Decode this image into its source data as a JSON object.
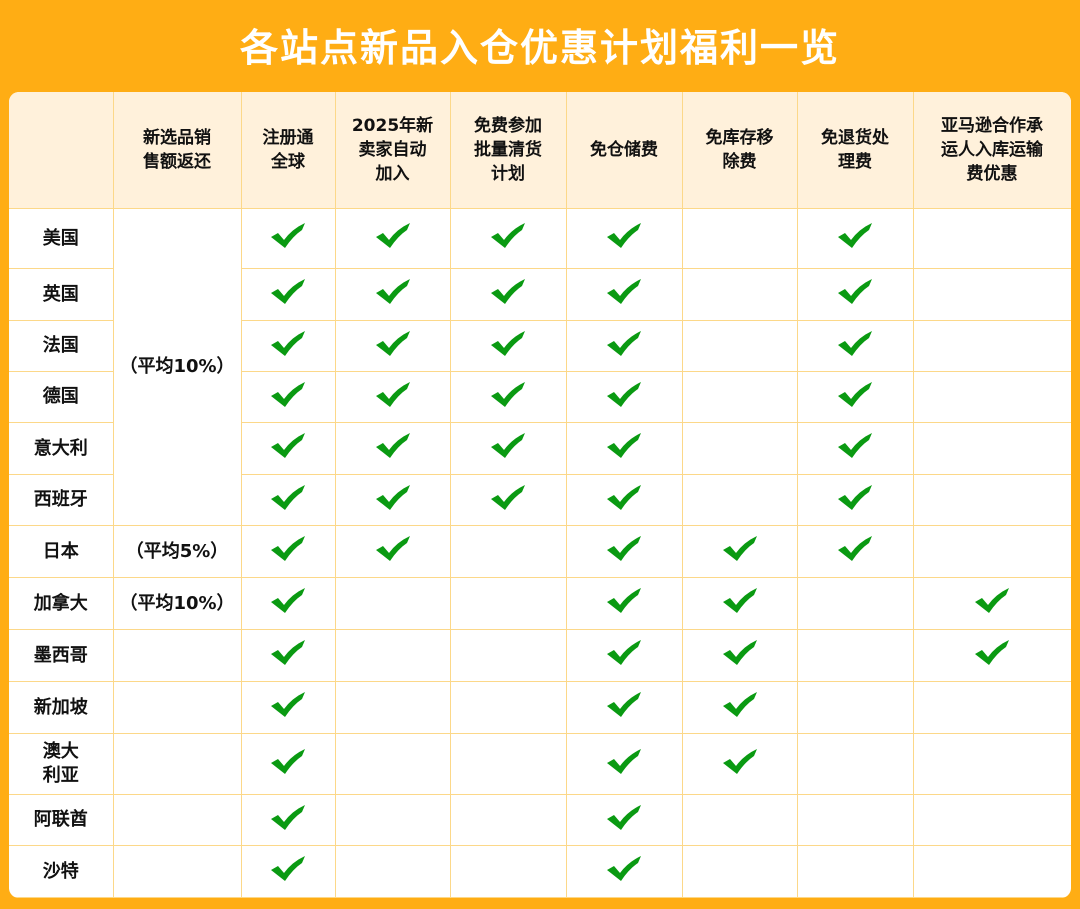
{
  "title": "各站点新品入仓优惠计划福利一览",
  "colors": {
    "background": "#ffad14",
    "header_bg": "#fff1db",
    "grid": "#fcd889",
    "check": "#0a9a12"
  },
  "icon": "check-icon",
  "columns": [
    "",
    "新选品销售额返还",
    "注册通全球",
    "2025年新卖家自动加入",
    "免费参加批量清货计划",
    "免仓储费",
    "免库存移除费",
    "免退货处理费",
    "亚马逊合作承运人入库运输费优惠"
  ],
  "header_lines": [
    [
      ""
    ],
    [
      "新选品销",
      "售额返还"
    ],
    [
      "注册通",
      "全球"
    ],
    [
      "2025年新",
      "卖家自动",
      "加入"
    ],
    [
      "免费参加",
      "批量清货",
      "计划"
    ],
    [
      "免仓储费"
    ],
    [
      "免库存移",
      "除费"
    ],
    [
      "免退货处",
      "理费"
    ],
    [
      "亚马逊合作承",
      "运人入库运输",
      "费优惠"
    ]
  ],
  "rebate_groups": [
    {
      "text": "（平均10%）",
      "rows": 6
    },
    {
      "text": "（平均5%）",
      "rows": 1
    },
    {
      "text": "（平均10%）",
      "rows": 1
    },
    {
      "text": "",
      "rows": 1
    },
    {
      "text": "",
      "rows": 1
    },
    {
      "text": "",
      "rows": 1
    },
    {
      "text": "",
      "rows": 1
    },
    {
      "text": "",
      "rows": 1
    }
  ],
  "rows": [
    {
      "site": "美国",
      "checks": [
        1,
        1,
        1,
        1,
        0,
        1,
        0
      ]
    },
    {
      "site": "英国",
      "checks": [
        1,
        1,
        1,
        1,
        0,
        1,
        0
      ]
    },
    {
      "site": "法国",
      "checks": [
        1,
        1,
        1,
        1,
        0,
        1,
        0
      ]
    },
    {
      "site": "德国",
      "checks": [
        1,
        1,
        1,
        1,
        0,
        1,
        0
      ]
    },
    {
      "site": "意大利",
      "checks": [
        1,
        1,
        1,
        1,
        0,
        1,
        0
      ]
    },
    {
      "site": "西班牙",
      "checks": [
        1,
        1,
        1,
        1,
        0,
        1,
        0
      ]
    },
    {
      "site": "日本",
      "checks": [
        1,
        1,
        0,
        1,
        1,
        1,
        0
      ]
    },
    {
      "site": "加拿大",
      "checks": [
        1,
        0,
        0,
        1,
        1,
        0,
        1
      ]
    },
    {
      "site": "墨西哥",
      "checks": [
        1,
        0,
        0,
        1,
        1,
        0,
        1
      ]
    },
    {
      "site": "新加坡",
      "checks": [
        1,
        0,
        0,
        1,
        1,
        0,
        0
      ]
    },
    {
      "site": "澳大利亚",
      "site_lines": [
        "澳大",
        "利亚"
      ],
      "checks": [
        1,
        0,
        0,
        1,
        1,
        0,
        0
      ]
    },
    {
      "site": "阿联酋",
      "checks": [
        1,
        0,
        0,
        1,
        0,
        0,
        0
      ]
    },
    {
      "site": "沙特",
      "checks": [
        1,
        0,
        0,
        1,
        0,
        0,
        0
      ]
    }
  ]
}
